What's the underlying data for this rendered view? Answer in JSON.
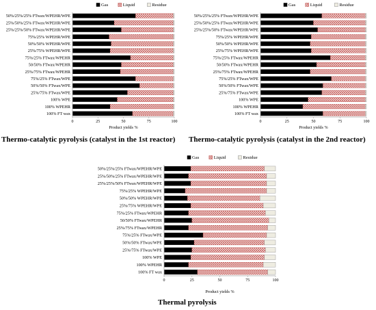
{
  "chart_data": [
    {
      "type": "bar",
      "orientation": "horizontal",
      "stacked": true,
      "title": "Thermo-catalytic pyrolysis (catalyst in the 1st reactor)",
      "xlabel": "Product yields %",
      "xlim": [
        0,
        100
      ],
      "xticks": [
        "0",
        "25",
        "50",
        "75",
        "100"
      ],
      "legend_position": "top",
      "categories": [
        "50%/25%/25% FTwax/WPEHR/WPE",
        "25%/50%/25% FTwax/WPEHR/WPE",
        "25%/25%/50% FTwax/WPEHR/WPE",
        "75%/25% WPEHR/WPE",
        "50%/50% WPEHR/WPE",
        "25%/75% WPEHR/WPE",
        "75%/25% FTwax/WPEHR",
        "50/50% FTwax/WPEHR",
        "25%/75% FTwax/WPEHR",
        "75%/25% FTwax/WPE",
        "50%/50% FTwax/WPE",
        "25%/75% FTwax/WPE",
        "100% WPE",
        "100% WPEHR",
        "100% FT wax"
      ],
      "series": [
        {
          "name": "Gas",
          "values": [
            62,
            41,
            48,
            36,
            38,
            37,
            57,
            48,
            47,
            62,
            66,
            54,
            44,
            37,
            59
          ]
        },
        {
          "name": "Liquid",
          "values": [
            37,
            58,
            51,
            63,
            61,
            62,
            42,
            51,
            52,
            37,
            33,
            45,
            55,
            62,
            40
          ]
        },
        {
          "name": "Residue",
          "values": [
            1,
            1,
            1,
            1,
            1,
            1,
            1,
            1,
            1,
            1,
            1,
            1,
            1,
            1,
            1
          ]
        }
      ]
    },
    {
      "type": "bar",
      "orientation": "horizontal",
      "stacked": true,
      "title": "Thermo-catalytic pyrolysis (catalyst in the 2nd reactor)",
      "xlabel": "Product yields %",
      "xlim": [
        0,
        100
      ],
      "xticks": [
        "0",
        "25",
        "50",
        "75",
        "100"
      ],
      "legend_position": "top",
      "categories": [
        "50%/25%/25% FTwax/WPEHR/WPE",
        "25%/50%/25% FTwax/WPEHR/WPE",
        "25%/25%/50% FTwax/WPEHR/WPE",
        "75%/25% WPEHR/WPE",
        "50%/50% WPEHR/WPE",
        "25%/75% WPEHR/WPE",
        "75%/25% FTwax/WPEHR",
        "50/50% FTwax/WPEHR",
        "25%/75% FTwax/WPEHR",
        "75%/25% FTwax/WPE",
        "50%/50% FTwax/WPE",
        "25%/75% FTwax/WPE",
        "100% WPE",
        "100% WPEHR",
        "100% FT wax"
      ],
      "series": [
        {
          "name": "Gas",
          "values": [
            58,
            50,
            54,
            48,
            47,
            48,
            66,
            53,
            47,
            67,
            59,
            58,
            45,
            40,
            59
          ]
        },
        {
          "name": "Liquid",
          "values": [
            41,
            49,
            45,
            51,
            52,
            51,
            33,
            46,
            52,
            32,
            40,
            41,
            54,
            59,
            40
          ]
        },
        {
          "name": "Residue",
          "values": [
            1,
            1,
            1,
            1,
            1,
            1,
            1,
            1,
            1,
            1,
            1,
            1,
            1,
            1,
            1
          ]
        }
      ]
    },
    {
      "type": "bar",
      "orientation": "horizontal",
      "stacked": true,
      "title": "Thermal pyrolysis",
      "xlabel": "Product yields %",
      "xlim": [
        0,
        100
      ],
      "xticks": [
        "0",
        "25",
        "50",
        "75",
        "100"
      ],
      "legend_position": "top",
      "categories": [
        "50%/25%/25% FTwax/WPEHR/WPE",
        "25%/50%/25% FTwax/WPEHR/WPE",
        "25%/25%/50% FTwax/WPEHR/WPE",
        "75%/25% WPEHR/WPE",
        "50%/50% WPEHR/WPE",
        "25%/75% WPEHR/WPE",
        "75%/25% FTwax/WPEHR",
        "50/50% FTwax/WPEHR",
        "25%/75% FTwax/WPEHR",
        "75%/25% FTwax/WPE",
        "50%/50% FTwax/WPE",
        "25%/75% FTwax/WPE",
        "100% WPE",
        "100% WPEHR",
        "100% FT wax"
      ],
      "series": [
        {
          "name": "Gas",
          "values": [
            24,
            22,
            24,
            19,
            21,
            24,
            22,
            25,
            22,
            35,
            27,
            25,
            24,
            22,
            30
          ]
        },
        {
          "name": "Liquid",
          "values": [
            66,
            70,
            68,
            73,
            65,
            65,
            69,
            69,
            71,
            57,
            63,
            66,
            66,
            67,
            63
          ]
        },
        {
          "name": "Residue",
          "values": [
            10,
            8,
            8,
            8,
            14,
            11,
            9,
            6,
            7,
            8,
            10,
            9,
            10,
            11,
            7
          ]
        }
      ]
    }
  ],
  "colors": {
    "gas": "#000000",
    "liquid_hatch": "#c0504d",
    "residue": "#eeece1",
    "axis": "#a6a6a6"
  }
}
